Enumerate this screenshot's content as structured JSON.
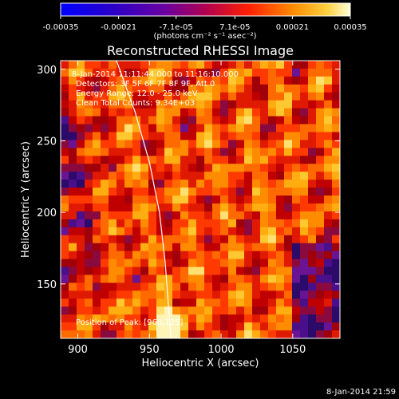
{
  "chart_data": {
    "type": "heatmap",
    "title": "Reconstructed RHESSI Image",
    "xlabel": "Heliocentric X (arcsec)",
    "ylabel": "Heliocentric Y (arcsec)",
    "xlim": [
      888,
      1083
    ],
    "ylim": [
      112,
      306
    ],
    "x_ticks": [
      "900",
      "950",
      "1000",
      "1050"
    ],
    "x_tick_values": [
      900,
      950,
      1000,
      1050
    ],
    "y_ticks": [
      "150",
      "200",
      "250",
      "300"
    ],
    "y_tick_values": [
      150,
      200,
      250,
      300
    ],
    "colorbar": {
      "min": -0.00035,
      "max": 0.00035,
      "tick_labels": [
        "-0.00035",
        "-0.00021",
        "-7.1e-05",
        "7.1e-05",
        "0.00021",
        "0.00035"
      ],
      "units_label": "(photons cm⁻² s⁻¹ asec⁻²)"
    },
    "annotations": [
      "8-Jan-2014 11:11:44.000 to 11:16:10.000",
      "Detectors: 3F 5F 6F 7F 8F 9F, Att 0",
      "Energy Range: 12.0 - 25.0 keV",
      "Clean     Total Counts: 9.34E+03"
    ],
    "peak_label": "Position of Peak: [960,125]",
    "peak": {
      "x": 960,
      "y": 125
    },
    "limb_arc": [
      [
        927,
        306
      ],
      [
        940,
        270
      ],
      [
        950,
        235
      ],
      [
        957,
        200
      ],
      [
        961,
        165
      ],
      [
        964,
        125
      ],
      [
        965,
        112
      ]
    ]
  },
  "footer": {
    "timestamp": "8-Jan-2014 21:59"
  }
}
